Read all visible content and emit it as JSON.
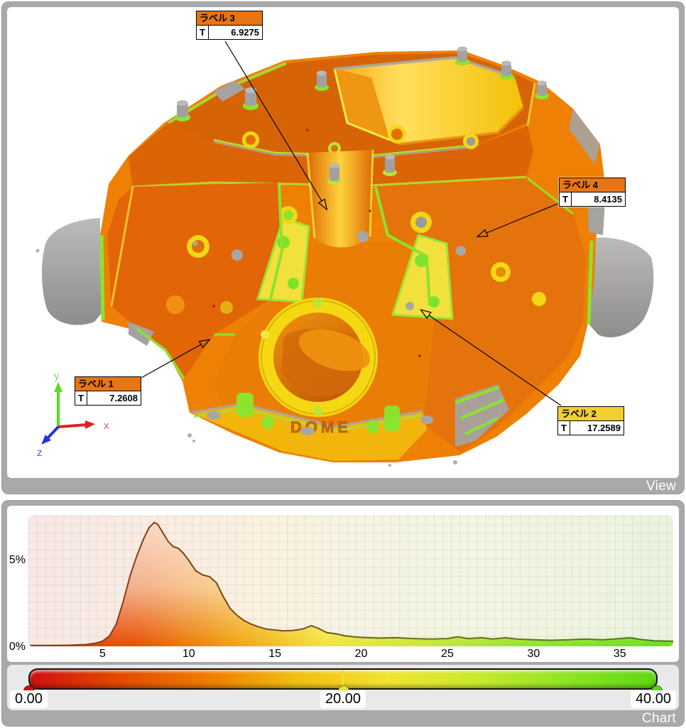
{
  "view_panel": {
    "title": "View",
    "labels": [
      {
        "name": "ラベル 1",
        "field": "T",
        "value": "7.2608",
        "header_color": "#e87513"
      },
      {
        "name": "ラベル 2",
        "field": "T",
        "value": "17.2589",
        "header_color": "#f0cf2e"
      },
      {
        "name": "ラベル 3",
        "field": "T",
        "value": "6.9275",
        "header_color": "#e87513"
      },
      {
        "name": "ラベル 4",
        "field": "T",
        "value": "8.4135",
        "header_color": "#e87513"
      }
    ],
    "axis_triad": {
      "x": {
        "label": "x",
        "color": "#e03a3a"
      },
      "y": {
        "label": "y",
        "color": "#55dd22"
      },
      "z": {
        "label": "z",
        "color": "#2233dd"
      }
    },
    "model_text": "DOME"
  },
  "chart_panel": {
    "title": "Chart",
    "colorbar": {
      "min_label": "0.00",
      "mid_label": "20.00",
      "max_label": "40.00",
      "gradient": [
        "#d01010",
        "#e24a00",
        "#ef7d00",
        "#f0c013",
        "#f2e431",
        "#c9ea2e",
        "#8fe424",
        "#5cd914"
      ],
      "handle_colors": {
        "min": "#cc1111",
        "mid": "#e8e13a",
        "max": "#55d514"
      }
    }
  },
  "chart_data": {
    "type": "area",
    "title": "",
    "xlabel": "",
    "ylabel": "",
    "x_ticks": [
      5,
      10,
      15,
      20,
      25,
      30,
      35
    ],
    "y_ticks": [
      "0%",
      "5%"
    ],
    "xlim": [
      0.7,
      38.1
    ],
    "ylim": [
      0,
      7.6
    ],
    "grid": true,
    "points": [
      [
        0.7,
        0.05
      ],
      [
        2,
        0.05
      ],
      [
        3,
        0.06
      ],
      [
        4,
        0.1
      ],
      [
        4.6,
        0.18
      ],
      [
        5,
        0.3
      ],
      [
        5.4,
        0.6
      ],
      [
        5.8,
        1.3
      ],
      [
        6.2,
        2.6
      ],
      [
        6.6,
        4.1
      ],
      [
        7,
        5.3
      ],
      [
        7.4,
        6.3
      ],
      [
        7.7,
        6.9
      ],
      [
        8,
        7.2
      ],
      [
        8.2,
        7.1
      ],
      [
        8.5,
        6.6
      ],
      [
        8.8,
        6.1
      ],
      [
        9.1,
        5.8
      ],
      [
        9.4,
        5.7
      ],
      [
        9.7,
        5.4
      ],
      [
        10,
        5.0
      ],
      [
        10.4,
        4.4
      ],
      [
        10.8,
        4.15
      ],
      [
        11.2,
        4.05
      ],
      [
        11.6,
        3.7
      ],
      [
        12,
        2.9
      ],
      [
        12.4,
        2.2
      ],
      [
        12.8,
        1.8
      ],
      [
        13.2,
        1.5
      ],
      [
        13.6,
        1.3
      ],
      [
        14,
        1.15
      ],
      [
        14.5,
        1.0
      ],
      [
        15,
        0.95
      ],
      [
        15.5,
        0.9
      ],
      [
        16,
        0.92
      ],
      [
        16.6,
        1.0
      ],
      [
        17.1,
        1.2
      ],
      [
        17.5,
        1.05
      ],
      [
        18,
        0.8
      ],
      [
        18.6,
        0.72
      ],
      [
        19,
        0.62
      ],
      [
        19.6,
        0.55
      ],
      [
        20,
        0.52
      ],
      [
        21,
        0.48
      ],
      [
        22,
        0.5
      ],
      [
        23,
        0.45
      ],
      [
        24,
        0.42
      ],
      [
        25,
        0.45
      ],
      [
        25.6,
        0.55
      ],
      [
        26.2,
        0.45
      ],
      [
        27,
        0.5
      ],
      [
        27.6,
        0.42
      ],
      [
        28.4,
        0.5
      ],
      [
        29,
        0.42
      ],
      [
        30,
        0.38
      ],
      [
        31,
        0.35
      ],
      [
        32,
        0.38
      ],
      [
        33,
        0.42
      ],
      [
        34,
        0.38
      ],
      [
        35,
        0.45
      ],
      [
        35.6,
        0.5
      ],
      [
        36.2,
        0.4
      ],
      [
        37,
        0.32
      ],
      [
        38.1,
        0.3
      ]
    ]
  }
}
